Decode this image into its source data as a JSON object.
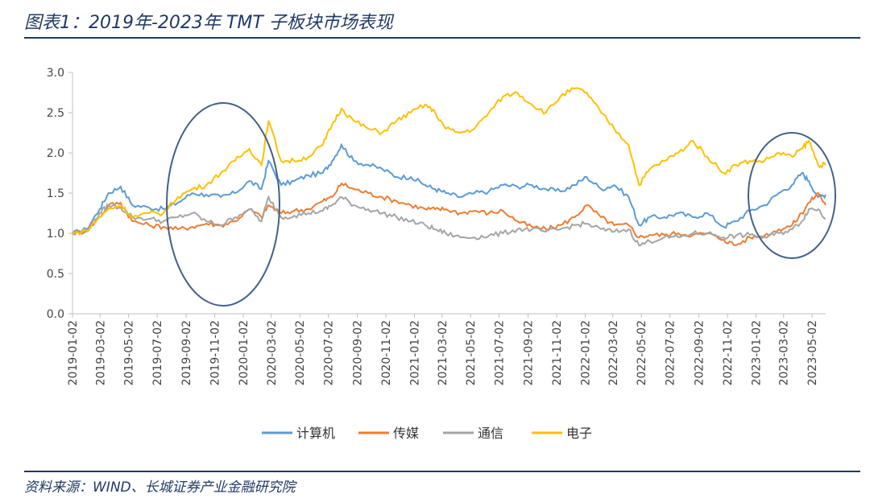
{
  "title": "图表1：2019年-2023年 TMT 子板块市场表现",
  "source": "资料来源：WIND、长城证券产业金融研究院",
  "colors": {
    "rule": "#1f3a66",
    "circle": "#41628a"
  },
  "chart_data": {
    "type": "line",
    "title": "",
    "xlabel": "",
    "ylabel": "",
    "ylim": [
      0.0,
      3.0
    ],
    "yticks": [
      "0.0",
      "0.5",
      "1.0",
      "1.5",
      "2.0",
      "2.5",
      "3.0"
    ],
    "xlim": [
      "2019-01-02",
      "2023-05-31"
    ],
    "xticks": [
      "2019-01-02",
      "2019-03-02",
      "2019-05-02",
      "2019-07-02",
      "2019-09-02",
      "2019-11-02",
      "2020-01-02",
      "2020-03-02",
      "2020-05-02",
      "2020-07-02",
      "2020-09-02",
      "2020-11-02",
      "2021-01-02",
      "2021-03-02",
      "2021-05-02",
      "2021-07-02",
      "2021-09-02",
      "2021-11-02",
      "2022-01-02",
      "2022-03-02",
      "2022-05-02",
      "2022-07-02",
      "2022-09-02",
      "2022-11-02",
      "2023-01-02",
      "2023-03-02",
      "2023-05-02"
    ],
    "legend_position": "bottom",
    "grid": false,
    "series": [
      {
        "name": "计算机",
        "color": "#5b9bd5",
        "x": [
          "2019-01-02",
          "2019-02-01",
          "2019-03-01",
          "2019-03-20",
          "2019-04-15",
          "2019-05-10",
          "2019-06-15",
          "2019-07-15",
          "2019-08-15",
          "2019-09-15",
          "2019-10-15",
          "2019-11-15",
          "2019-12-15",
          "2020-01-15",
          "2020-02-10",
          "2020-02-25",
          "2020-03-23",
          "2020-04-20",
          "2020-05-20",
          "2020-06-20",
          "2020-07-10",
          "2020-07-30",
          "2020-08-25",
          "2020-09-25",
          "2020-10-25",
          "2020-11-25",
          "2020-12-25",
          "2021-01-25",
          "2021-02-15",
          "2021-03-10",
          "2021-04-10",
          "2021-05-10",
          "2021-06-10",
          "2021-07-10",
          "2021-08-10",
          "2021-09-10",
          "2021-10-10",
          "2021-11-10",
          "2021-12-10",
          "2022-01-05",
          "2022-02-05",
          "2022-03-05",
          "2022-04-05",
          "2022-04-27",
          "2022-05-20",
          "2022-06-20",
          "2022-07-20",
          "2022-08-20",
          "2022-09-20",
          "2022-10-25",
          "2022-11-20",
          "2022-12-20",
          "2023-01-20",
          "2023-02-20",
          "2023-03-20",
          "2023-04-10",
          "2023-04-25",
          "2023-05-15",
          "2023-05-31"
        ],
        "values": [
          1.0,
          1.05,
          1.3,
          1.5,
          1.58,
          1.35,
          1.32,
          1.3,
          1.38,
          1.5,
          1.48,
          1.45,
          1.5,
          1.65,
          1.55,
          1.9,
          1.6,
          1.65,
          1.72,
          1.75,
          1.9,
          2.1,
          1.9,
          1.85,
          1.8,
          1.7,
          1.7,
          1.6,
          1.55,
          1.5,
          1.45,
          1.5,
          1.52,
          1.6,
          1.58,
          1.6,
          1.55,
          1.52,
          1.6,
          1.7,
          1.55,
          1.6,
          1.45,
          1.1,
          1.2,
          1.2,
          1.25,
          1.2,
          1.25,
          1.08,
          1.15,
          1.28,
          1.35,
          1.5,
          1.6,
          1.75,
          1.65,
          1.45,
          1.48
        ]
      },
      {
        "name": "传媒",
        "color": "#ed7d31",
        "x": [
          "2019-01-02",
          "2019-02-01",
          "2019-03-01",
          "2019-03-20",
          "2019-04-15",
          "2019-05-10",
          "2019-06-15",
          "2019-07-15",
          "2019-08-15",
          "2019-09-15",
          "2019-10-15",
          "2019-11-15",
          "2019-12-15",
          "2020-01-15",
          "2020-02-10",
          "2020-02-25",
          "2020-03-23",
          "2020-04-20",
          "2020-05-20",
          "2020-06-20",
          "2020-07-10",
          "2020-07-30",
          "2020-08-25",
          "2020-09-25",
          "2020-10-25",
          "2020-11-25",
          "2020-12-25",
          "2021-01-25",
          "2021-02-15",
          "2021-03-10",
          "2021-04-10",
          "2021-05-10",
          "2021-06-10",
          "2021-07-10",
          "2021-08-10",
          "2021-09-10",
          "2021-10-10",
          "2021-11-10",
          "2021-12-10",
          "2022-01-05",
          "2022-02-05",
          "2022-03-05",
          "2022-04-05",
          "2022-04-27",
          "2022-05-20",
          "2022-06-20",
          "2022-07-20",
          "2022-08-20",
          "2022-09-20",
          "2022-10-25",
          "2022-11-20",
          "2022-12-20",
          "2023-01-20",
          "2023-02-20",
          "2023-03-20",
          "2023-04-10",
          "2023-04-25",
          "2023-05-15",
          "2023-05-31"
        ],
        "values": [
          1.0,
          1.03,
          1.2,
          1.35,
          1.38,
          1.15,
          1.1,
          1.08,
          1.05,
          1.08,
          1.12,
          1.1,
          1.15,
          1.3,
          1.2,
          1.35,
          1.25,
          1.28,
          1.3,
          1.4,
          1.45,
          1.62,
          1.55,
          1.5,
          1.45,
          1.4,
          1.35,
          1.3,
          1.3,
          1.3,
          1.25,
          1.28,
          1.25,
          1.28,
          1.15,
          1.08,
          1.05,
          1.1,
          1.2,
          1.35,
          1.2,
          1.1,
          1.1,
          0.95,
          0.98,
          0.98,
          1.0,
          0.98,
          1.0,
          0.92,
          0.85,
          0.95,
          0.97,
          1.05,
          1.1,
          1.25,
          1.38,
          1.5,
          1.35
        ]
      },
      {
        "name": "通信",
        "color": "#a5a5a5",
        "x": [
          "2019-01-02",
          "2019-02-01",
          "2019-03-01",
          "2019-03-20",
          "2019-04-15",
          "2019-05-10",
          "2019-06-15",
          "2019-07-15",
          "2019-08-15",
          "2019-09-15",
          "2019-10-15",
          "2019-11-15",
          "2019-12-15",
          "2020-01-15",
          "2020-02-10",
          "2020-02-25",
          "2020-03-23",
          "2020-04-20",
          "2020-05-20",
          "2020-06-20",
          "2020-07-10",
          "2020-07-30",
          "2020-08-25",
          "2020-09-25",
          "2020-10-25",
          "2020-11-25",
          "2020-12-25",
          "2021-01-25",
          "2021-02-15",
          "2021-03-10",
          "2021-04-10",
          "2021-05-10",
          "2021-06-10",
          "2021-07-10",
          "2021-08-10",
          "2021-09-10",
          "2021-10-10",
          "2021-11-10",
          "2021-12-10",
          "2022-01-05",
          "2022-02-05",
          "2022-03-05",
          "2022-04-05",
          "2022-04-27",
          "2022-05-20",
          "2022-06-20",
          "2022-07-20",
          "2022-08-20",
          "2022-09-20",
          "2022-10-25",
          "2022-11-20",
          "2022-12-20",
          "2023-01-20",
          "2023-02-20",
          "2023-03-20",
          "2023-04-10",
          "2023-04-25",
          "2023-05-15",
          "2023-05-31"
        ],
        "values": [
          1.0,
          1.02,
          1.25,
          1.35,
          1.32,
          1.2,
          1.18,
          1.15,
          1.2,
          1.25,
          1.15,
          1.1,
          1.2,
          1.3,
          1.15,
          1.45,
          1.2,
          1.22,
          1.25,
          1.28,
          1.35,
          1.45,
          1.35,
          1.3,
          1.25,
          1.2,
          1.15,
          1.1,
          1.05,
          1.0,
          0.95,
          0.95,
          0.97,
          1.0,
          1.05,
          1.05,
          1.02,
          1.05,
          1.1,
          1.12,
          1.05,
          1.02,
          1.05,
          0.85,
          0.9,
          0.95,
          0.95,
          1.0,
          1.0,
          0.95,
          0.97,
          0.98,
          0.95,
          1.0,
          1.05,
          1.15,
          1.3,
          1.3,
          1.18
        ]
      },
      {
        "name": "电子",
        "color": "#ffc000",
        "x": [
          "2019-01-02",
          "2019-02-01",
          "2019-03-01",
          "2019-03-20",
          "2019-04-15",
          "2019-05-10",
          "2019-06-15",
          "2019-07-15",
          "2019-08-15",
          "2019-09-15",
          "2019-10-15",
          "2019-11-15",
          "2019-12-15",
          "2020-01-15",
          "2020-02-10",
          "2020-02-25",
          "2020-03-23",
          "2020-04-20",
          "2020-05-20",
          "2020-06-20",
          "2020-07-10",
          "2020-07-30",
          "2020-08-25",
          "2020-09-25",
          "2020-10-25",
          "2020-11-25",
          "2020-12-25",
          "2021-01-25",
          "2021-02-15",
          "2021-03-10",
          "2021-04-10",
          "2021-05-10",
          "2021-06-10",
          "2021-07-10",
          "2021-08-10",
          "2021-09-10",
          "2021-10-10",
          "2021-11-10",
          "2021-12-10",
          "2022-01-05",
          "2022-02-05",
          "2022-03-05",
          "2022-04-05",
          "2022-04-27",
          "2022-05-20",
          "2022-06-20",
          "2022-07-20",
          "2022-08-20",
          "2022-09-20",
          "2022-10-25",
          "2022-11-20",
          "2022-12-20",
          "2023-01-20",
          "2023-02-20",
          "2023-03-20",
          "2023-04-10",
          "2023-04-25",
          "2023-05-15",
          "2023-05-31"
        ],
        "values": [
          1.0,
          1.03,
          1.2,
          1.3,
          1.35,
          1.2,
          1.25,
          1.25,
          1.45,
          1.55,
          1.6,
          1.75,
          1.9,
          2.05,
          1.85,
          2.4,
          1.9,
          1.9,
          1.95,
          2.1,
          2.35,
          2.55,
          2.4,
          2.3,
          2.25,
          2.4,
          2.5,
          2.6,
          2.5,
          2.3,
          2.25,
          2.3,
          2.5,
          2.7,
          2.75,
          2.6,
          2.5,
          2.7,
          2.8,
          2.75,
          2.5,
          2.3,
          2.1,
          1.6,
          1.8,
          1.9,
          2.0,
          2.15,
          1.95,
          1.75,
          1.85,
          1.9,
          1.9,
          2.0,
          1.95,
          2.05,
          2.15,
          1.85,
          1.85
        ]
      }
    ]
  }
}
